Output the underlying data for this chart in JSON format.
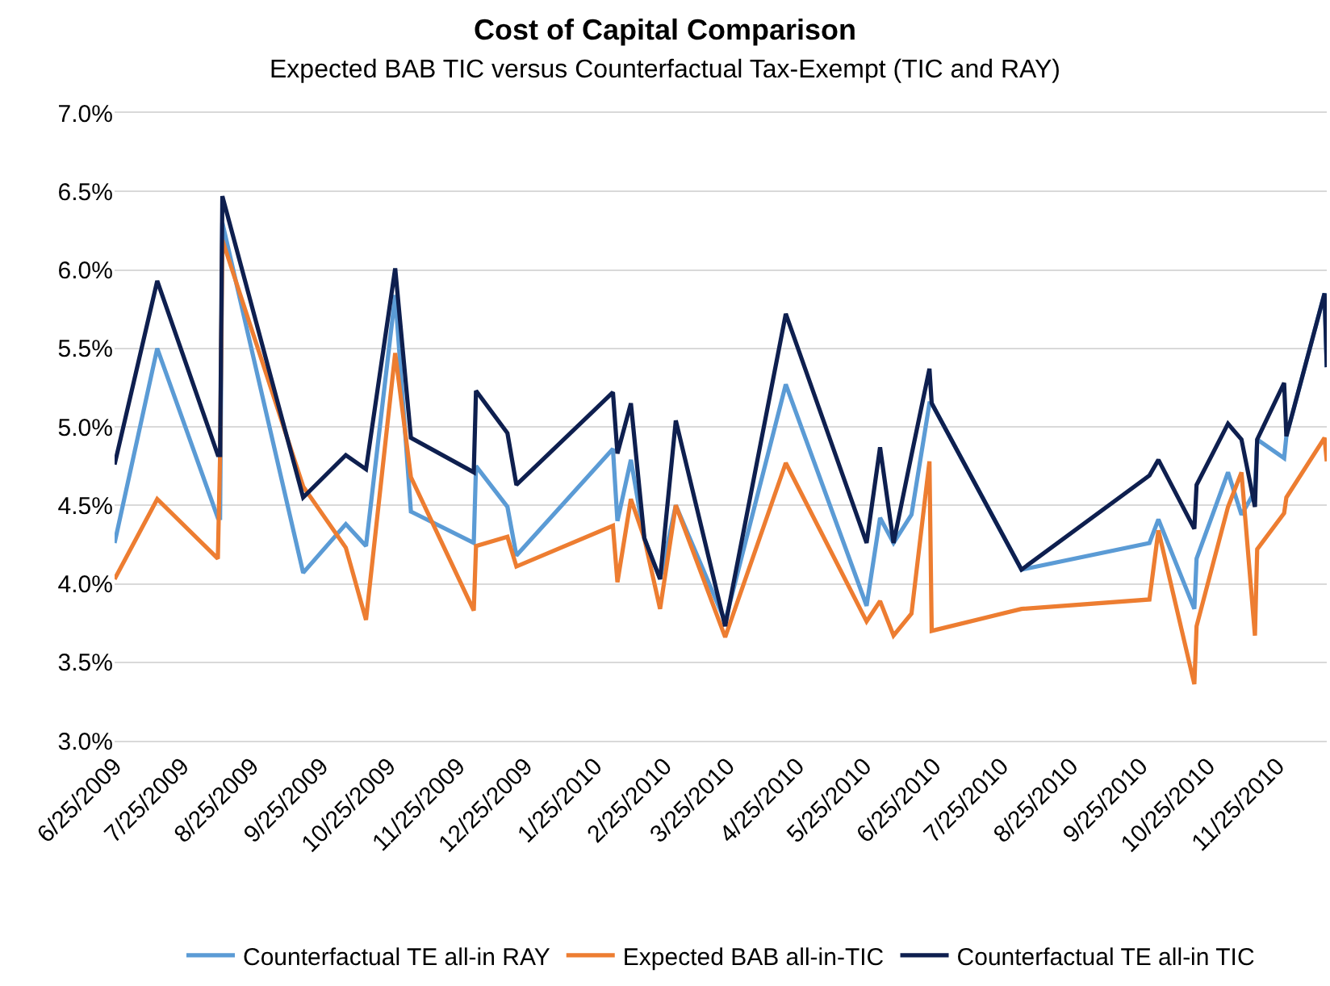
{
  "chart_data": {
    "type": "line",
    "title": "Cost of Capital Comparison",
    "subtitle": "Expected BAB TIC versus Counterfactual Tax-Exempt (TIC and RAY)",
    "x": [
      "2009-06-25",
      "2009-07-14",
      "2009-08-10",
      "2009-08-11",
      "2009-08-12",
      "2009-09-17",
      "2009-10-06",
      "2009-10-15",
      "2009-10-28",
      "2009-11-04",
      "2009-12-02",
      "2009-12-03",
      "2009-12-17",
      "2009-12-21",
      "2010-02-02",
      "2010-02-04",
      "2010-02-10",
      "2010-02-16",
      "2010-02-23",
      "2010-03-02",
      "2010-03-24",
      "2010-04-20",
      "2010-05-26",
      "2010-06-01",
      "2010-06-07",
      "2010-06-15",
      "2010-06-23",
      "2010-06-24",
      "2010-08-03",
      "2010-09-29",
      "2010-10-03",
      "2010-10-19",
      "2010-10-20",
      "2010-11-03",
      "2010-11-09",
      "2010-11-15",
      "2010-11-16",
      "2010-11-28",
      "2010-11-29",
      "2010-12-16",
      "2010-12-17"
    ],
    "series": [
      {
        "name": "Counterfactual TE all-in RAY",
        "color": "#5b9bd5",
        "values": [
          4.26,
          5.5,
          4.42,
          4.42,
          6.3,
          4.07,
          4.38,
          4.24,
          5.84,
          4.46,
          4.26,
          4.75,
          4.49,
          4.18,
          4.86,
          4.4,
          4.79,
          4.29,
          4.03,
          4.5,
          3.76,
          5.27,
          3.86,
          4.42,
          4.26,
          4.44,
          5.15,
          5.15,
          4.09,
          4.26,
          4.41,
          3.84,
          4.16,
          4.71,
          4.44,
          4.59,
          4.92,
          4.8,
          4.94,
          5.85,
          5.38
        ]
      },
      {
        "name": "Expected BAB all-in-TIC",
        "color": "#ed7d31",
        "values": [
          4.03,
          4.54,
          4.16,
          4.82,
          6.19,
          4.62,
          4.23,
          3.77,
          5.47,
          4.68,
          3.83,
          4.24,
          4.3,
          4.11,
          4.37,
          4.01,
          4.54,
          4.29,
          3.84,
          4.5,
          3.66,
          4.77,
          3.76,
          3.89,
          3.67,
          3.81,
          4.78,
          3.7,
          3.84,
          3.9,
          4.34,
          3.36,
          3.73,
          4.49,
          4.71,
          3.67,
          4.22,
          4.45,
          4.55,
          4.93,
          4.78
        ]
      },
      {
        "name": "Counterfactual TE all-in TIC",
        "color": "#0e1f4f",
        "values": [
          4.76,
          5.93,
          4.82,
          4.82,
          6.47,
          4.55,
          4.82,
          4.73,
          6.01,
          4.93,
          4.71,
          5.23,
          4.96,
          4.63,
          5.22,
          4.83,
          5.15,
          4.29,
          4.03,
          5.04,
          3.73,
          5.72,
          4.26,
          4.87,
          4.26,
          4.82,
          5.37,
          5.15,
          4.09,
          4.69,
          4.79,
          4.35,
          4.63,
          5.02,
          4.92,
          4.49,
          4.92,
          5.28,
          4.94,
          5.85,
          5.38
        ]
      }
    ],
    "xlim": [
      "2009-06-25",
      "2010-12-17"
    ],
    "xticks": [
      {
        "value": "2009-06-25",
        "label": "6/25/2009"
      },
      {
        "value": "2009-07-25",
        "label": "7/25/2009"
      },
      {
        "value": "2009-08-25",
        "label": "8/25/2009"
      },
      {
        "value": "2009-09-25",
        "label": "9/25/2009"
      },
      {
        "value": "2009-10-25",
        "label": "10/25/2009"
      },
      {
        "value": "2009-11-25",
        "label": "11/25/2009"
      },
      {
        "value": "2009-12-25",
        "label": "12/25/2009"
      },
      {
        "value": "2010-01-25",
        "label": "1/25/2010"
      },
      {
        "value": "2010-02-25",
        "label": "2/25/2010"
      },
      {
        "value": "2010-03-25",
        "label": "3/25/2010"
      },
      {
        "value": "2010-04-25",
        "label": "4/25/2010"
      },
      {
        "value": "2010-05-25",
        "label": "5/25/2010"
      },
      {
        "value": "2010-06-25",
        "label": "6/25/2010"
      },
      {
        "value": "2010-07-25",
        "label": "7/25/2010"
      },
      {
        "value": "2010-08-25",
        "label": "8/25/2010"
      },
      {
        "value": "2010-09-25",
        "label": "9/25/2010"
      },
      {
        "value": "2010-10-25",
        "label": "10/25/2010"
      },
      {
        "value": "2010-11-25",
        "label": "11/25/2010"
      }
    ],
    "ylim": [
      3.0,
      7.0
    ],
    "yticks": [
      {
        "value": 3.0,
        "label": "3.0%"
      },
      {
        "value": 3.5,
        "label": "3.5%"
      },
      {
        "value": 4.0,
        "label": "4.0%"
      },
      {
        "value": 4.5,
        "label": "4.5%"
      },
      {
        "value": 5.0,
        "label": "5.0%"
      },
      {
        "value": 5.5,
        "label": "5.5%"
      },
      {
        "value": 6.0,
        "label": "6.0%"
      },
      {
        "value": 6.5,
        "label": "6.5%"
      },
      {
        "value": 7.0,
        "label": "7.0%"
      }
    ],
    "grid": "y",
    "legend": "bottom",
    "marker": "none",
    "line_style": "solid"
  }
}
